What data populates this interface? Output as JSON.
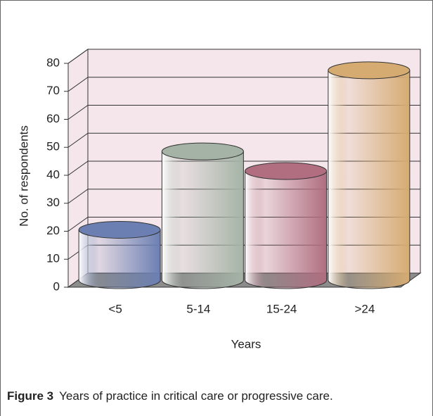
{
  "chart_data": {
    "type": "bar3d",
    "caption_label": "Figure 3",
    "caption": "Years of practice in critical care or progressive care.",
    "xlabel": "Years",
    "ylabel": "No. of respondents",
    "categories": [
      "<5",
      "5-14",
      "15-24",
      ">24"
    ],
    "values": [
      18,
      46,
      39,
      75
    ],
    "colors": [
      "#6b7fb2",
      "#a5b3a6",
      "#b06e80",
      "#d6ab72"
    ],
    "ylim": [
      0,
      80
    ],
    "yticks": [
      0,
      10,
      20,
      30,
      40,
      50,
      60,
      70,
      80
    ],
    "grid": true
  }
}
